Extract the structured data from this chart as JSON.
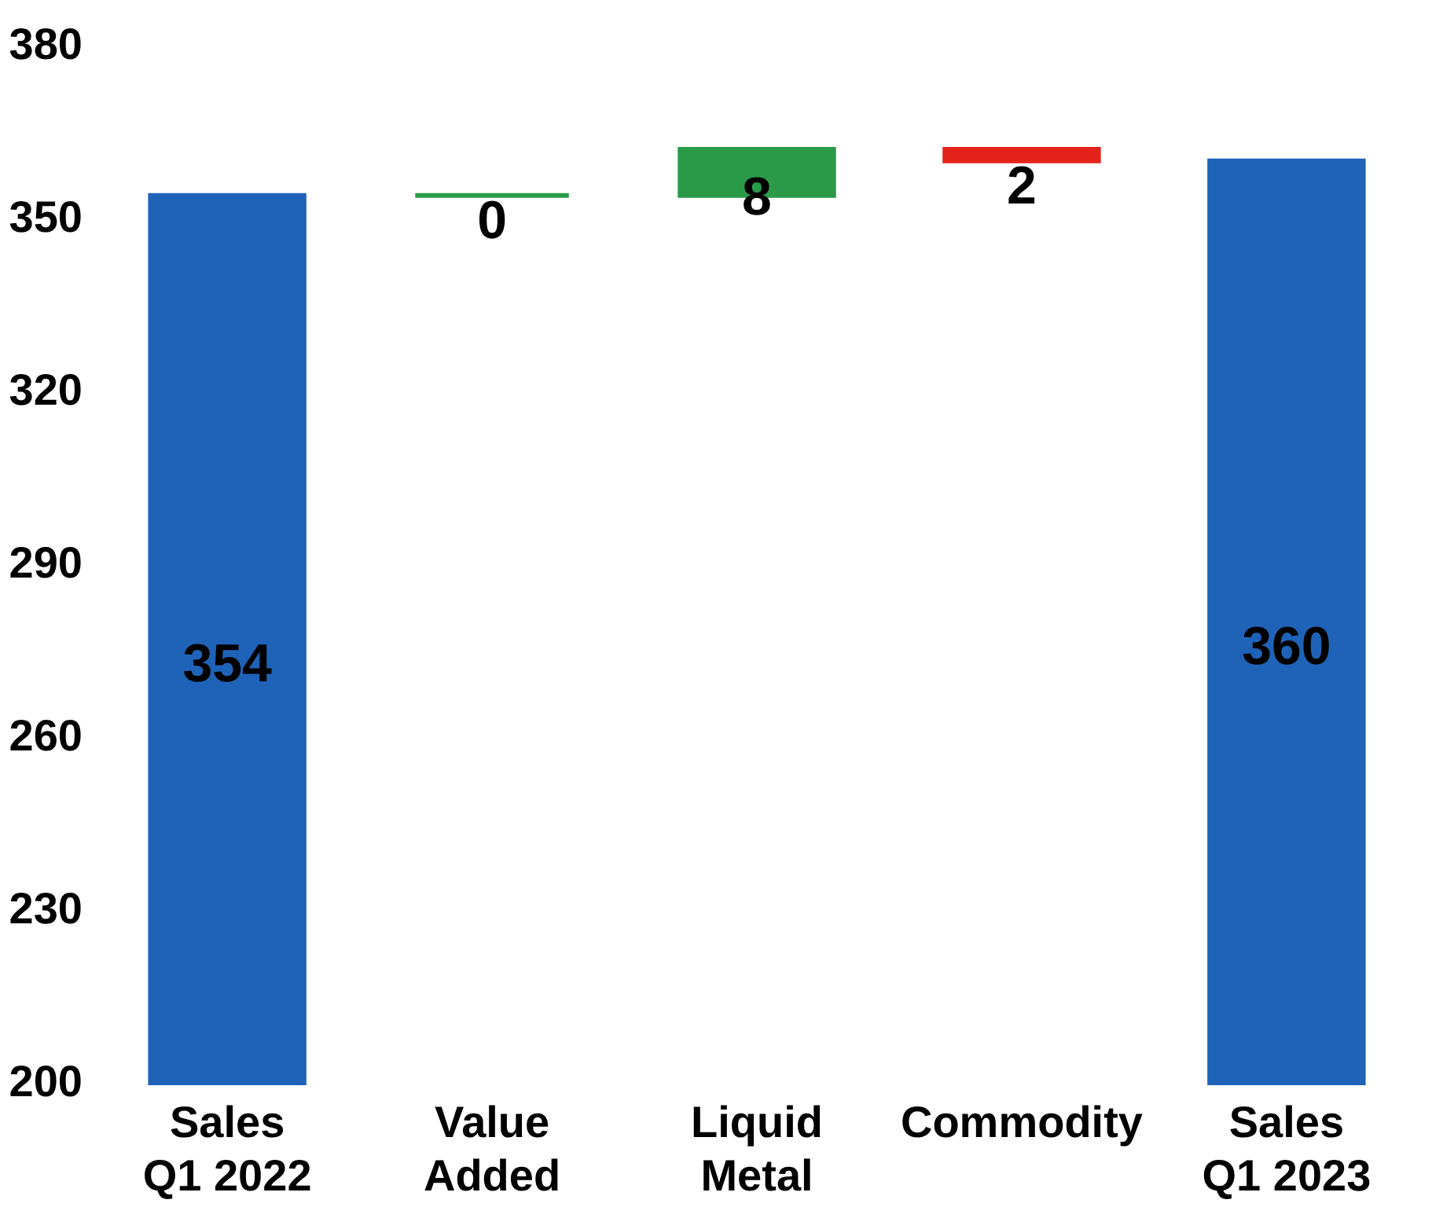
{
  "chart_data": {
    "type": "bar",
    "categories": [
      "Sales Q1 2022",
      "Value Added",
      "Liquid Metal",
      "Commodity",
      "Sales Q1 2023"
    ],
    "values": [
      154,
      0,
      8,
      -2,
      160
    ],
    "base": [
      200,
      354,
      354,
      362,
      200
    ],
    "colors": [
      "#1f63b8",
      "#2a9a48",
      "#2a9a48",
      "#e3231c",
      "#1f63b8"
    ],
    "value_labels": [
      "354",
      "0",
      "8",
      "2",
      "360"
    ],
    "ylim": [
      200,
      380
    ],
    "yticks": [
      200,
      230,
      260,
      290,
      320,
      350,
      380
    ],
    "grid": false
  }
}
